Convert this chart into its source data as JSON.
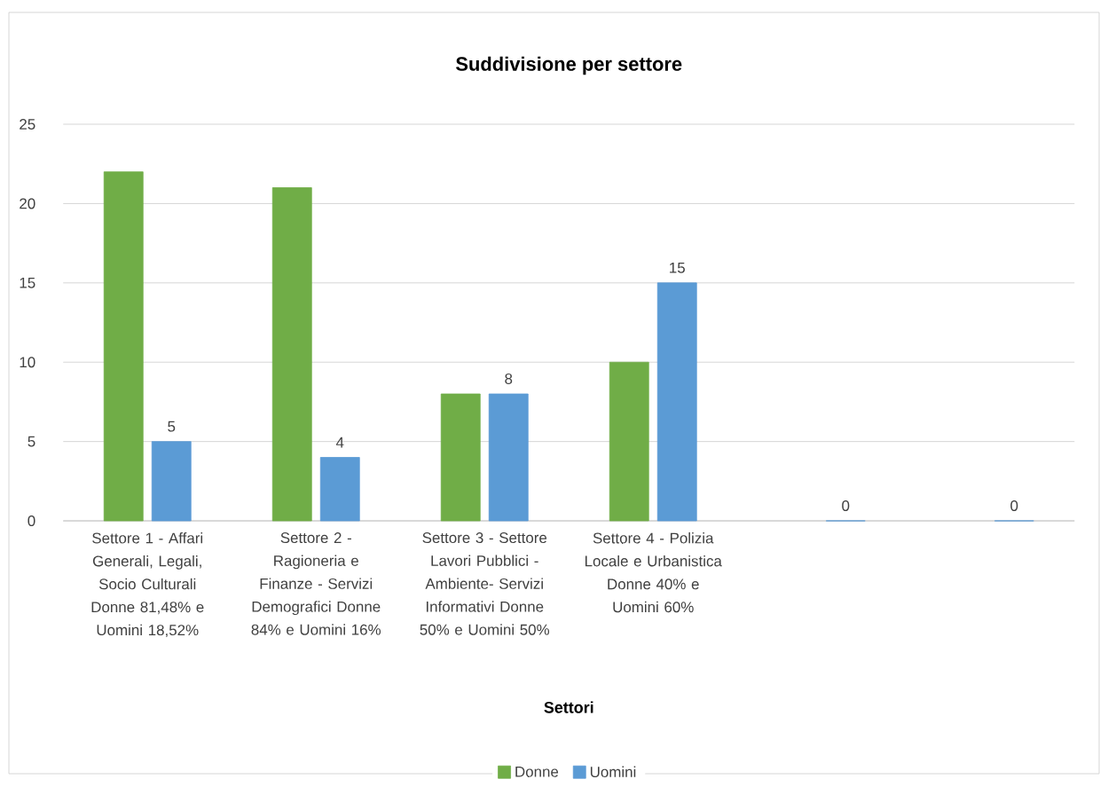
{
  "chart_data": {
    "type": "bar",
    "title": "Suddivisione per settore",
    "xlabel": "Settori",
    "categories": [
      "Settore 1 - Affari Generali, Legali, Socio Culturali Donne 81,48% e Uomini 18,52%",
      "Settore 2 - Ragioneria e Finanze - Servizi Demografici Donne 84% e Uomini 16%",
      "Settore 3 - Settore Lavori Pubblici - Ambiente- Servizi Informativi Donne 50% e Uomini 50%",
      "Settore 4 - Polizia Locale e Urbanistica Donne 40% e Uomini 60%",
      null,
      null
    ],
    "series": [
      {
        "name": "Donne",
        "color": "#70ad47",
        "values": [
          22,
          21,
          8,
          10,
          null,
          null
        ]
      },
      {
        "name": "Uomini",
        "color": "#5b9bd5",
        "values": [
          5,
          4,
          8,
          15,
          0,
          0
        ],
        "value_labels": [
          "5",
          "4",
          "8",
          "15",
          "0",
          "0"
        ]
      }
    ],
    "ylim": [
      0,
      25
    ],
    "yticks": [
      0,
      5,
      10,
      15,
      20,
      25
    ],
    "grid": "y",
    "legend": "bottom"
  }
}
